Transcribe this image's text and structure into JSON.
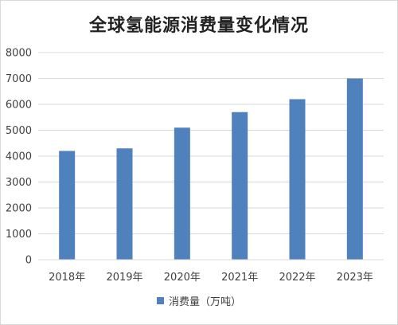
{
  "title": "全球氢能源消费量变化情况",
  "chart_data": {
    "type": "bar",
    "title": "全球氢能源消费量变化情况",
    "categories": [
      "2018年",
      "2019年",
      "2020年",
      "2021年",
      "2022年",
      "2023年"
    ],
    "series": [
      {
        "name": "消费量（万吨）",
        "values": [
          4200,
          4300,
          5100,
          5700,
          6200,
          7000
        ]
      }
    ],
    "ylim": [
      0,
      8000
    ],
    "yticks": [
      0,
      1000,
      2000,
      3000,
      4000,
      5000,
      6000,
      7000,
      8000
    ],
    "grid": true,
    "legend_position": "bottom",
    "colors": {
      "bar": "#4f81bd",
      "grid": "#d9d9d9"
    }
  }
}
